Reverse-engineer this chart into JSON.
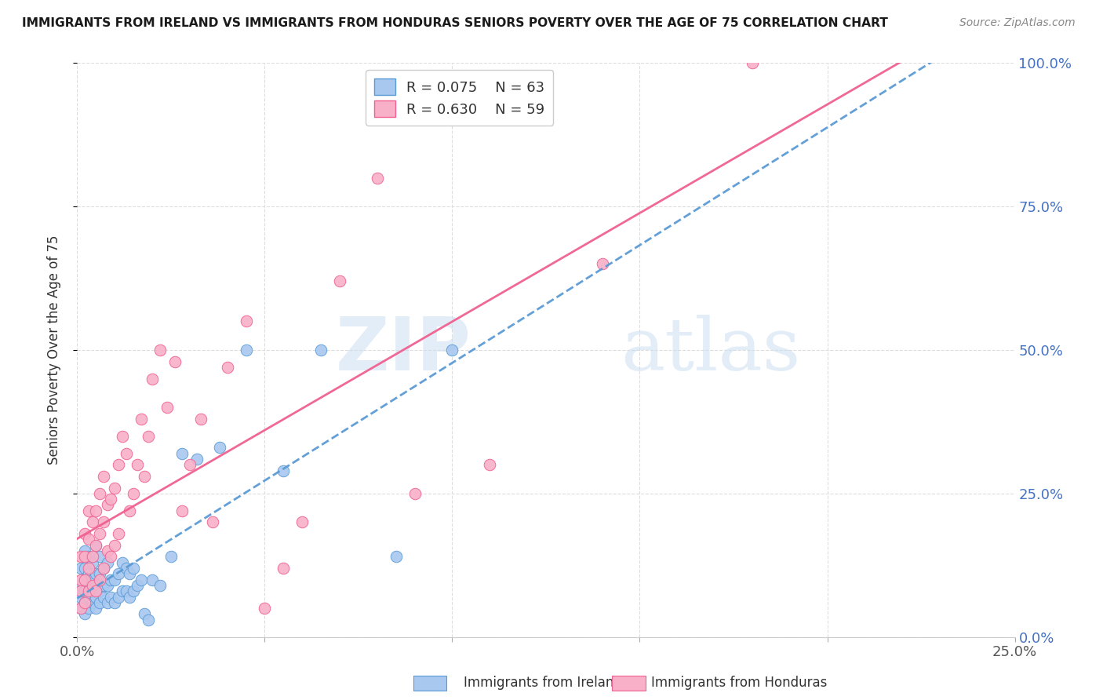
{
  "title": "IMMIGRANTS FROM IRELAND VS IMMIGRANTS FROM HONDURAS SENIORS POVERTY OVER THE AGE OF 75 CORRELATION CHART",
  "source": "Source: ZipAtlas.com",
  "ylabel": "Seniors Poverty Over the Age of 75",
  "ylabel_ticks": [
    "0.0%",
    "25.0%",
    "50.0%",
    "75.0%",
    "100.0%"
  ],
  "ylabel_tick_vals": [
    0.0,
    0.25,
    0.5,
    0.75,
    1.0
  ],
  "xlim": [
    0.0,
    0.25
  ],
  "ylim": [
    0.0,
    1.0
  ],
  "ireland_R": 0.075,
  "ireland_N": 63,
  "honduras_R": 0.63,
  "honduras_N": 59,
  "ireland_color": "#a8c8f0",
  "honduras_color": "#f8b0c8",
  "ireland_line_color": "#5b9bd5",
  "honduras_line_color": "#f06090",
  "background_color": "#ffffff",
  "watermark_zip": "ZIP",
  "watermark_atlas": "atlas",
  "grid_color": "#dddddd",
  "title_color": "#1a1a1a",
  "source_color": "#888888",
  "tick_color_right": "#4472c4",
  "tick_color_bottom": "#555555",
  "ireland_x": [
    0.001,
    0.001,
    0.001,
    0.001,
    0.002,
    0.002,
    0.002,
    0.002,
    0.002,
    0.002,
    0.003,
    0.003,
    0.003,
    0.003,
    0.003,
    0.004,
    0.004,
    0.004,
    0.004,
    0.005,
    0.005,
    0.005,
    0.005,
    0.005,
    0.006,
    0.006,
    0.006,
    0.006,
    0.007,
    0.007,
    0.007,
    0.008,
    0.008,
    0.008,
    0.009,
    0.009,
    0.01,
    0.01,
    0.011,
    0.011,
    0.012,
    0.012,
    0.013,
    0.013,
    0.014,
    0.014,
    0.015,
    0.015,
    0.016,
    0.017,
    0.018,
    0.019,
    0.02,
    0.022,
    0.025,
    0.028,
    0.032,
    0.038,
    0.045,
    0.055,
    0.065,
    0.085,
    0.1
  ],
  "ireland_y": [
    0.05,
    0.07,
    0.09,
    0.12,
    0.04,
    0.06,
    0.08,
    0.1,
    0.12,
    0.15,
    0.05,
    0.07,
    0.09,
    0.11,
    0.14,
    0.06,
    0.08,
    0.1,
    0.13,
    0.05,
    0.07,
    0.09,
    0.11,
    0.16,
    0.06,
    0.08,
    0.11,
    0.14,
    0.07,
    0.09,
    0.12,
    0.06,
    0.09,
    0.13,
    0.07,
    0.1,
    0.06,
    0.1,
    0.07,
    0.11,
    0.08,
    0.13,
    0.08,
    0.12,
    0.07,
    0.11,
    0.08,
    0.12,
    0.09,
    0.1,
    0.04,
    0.03,
    0.1,
    0.09,
    0.14,
    0.32,
    0.31,
    0.33,
    0.5,
    0.29,
    0.5,
    0.14,
    0.5
  ],
  "honduras_x": [
    0.001,
    0.001,
    0.001,
    0.001,
    0.002,
    0.002,
    0.002,
    0.002,
    0.003,
    0.003,
    0.003,
    0.003,
    0.004,
    0.004,
    0.004,
    0.005,
    0.005,
    0.005,
    0.006,
    0.006,
    0.006,
    0.007,
    0.007,
    0.007,
    0.008,
    0.008,
    0.009,
    0.009,
    0.01,
    0.01,
    0.011,
    0.011,
    0.012,
    0.013,
    0.014,
    0.015,
    0.016,
    0.017,
    0.018,
    0.019,
    0.02,
    0.022,
    0.024,
    0.026,
    0.028,
    0.03,
    0.033,
    0.036,
    0.04,
    0.045,
    0.05,
    0.055,
    0.06,
    0.07,
    0.08,
    0.09,
    0.11,
    0.14,
    0.18
  ],
  "honduras_y": [
    0.05,
    0.08,
    0.1,
    0.14,
    0.06,
    0.1,
    0.14,
    0.18,
    0.08,
    0.12,
    0.17,
    0.22,
    0.09,
    0.14,
    0.2,
    0.08,
    0.16,
    0.22,
    0.1,
    0.18,
    0.25,
    0.12,
    0.2,
    0.28,
    0.15,
    0.23,
    0.14,
    0.24,
    0.16,
    0.26,
    0.18,
    0.3,
    0.35,
    0.32,
    0.22,
    0.25,
    0.3,
    0.38,
    0.28,
    0.35,
    0.45,
    0.5,
    0.4,
    0.48,
    0.22,
    0.3,
    0.38,
    0.2,
    0.47,
    0.55,
    0.05,
    0.12,
    0.2,
    0.62,
    0.8,
    0.25,
    0.3,
    0.65,
    1.0
  ]
}
